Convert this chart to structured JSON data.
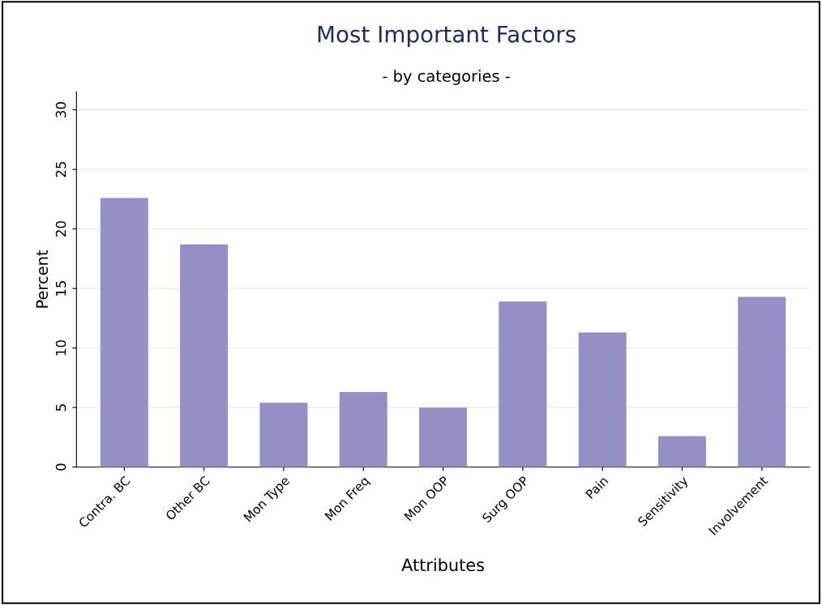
{
  "chart_data": {
    "type": "bar",
    "title": "Most Important Factors",
    "subtitle": "- by categories -",
    "xlabel": "Attributes",
    "ylabel": "Percent",
    "categories": [
      "Contra. BC",
      "Other BC",
      "Mon Type",
      "Mon Freq",
      "Mon OOP",
      "Surg OOP",
      "Pain",
      "Sensitivity",
      "Involvement"
    ],
    "values": [
      22.6,
      18.7,
      5.4,
      6.3,
      5.0,
      13.9,
      11.3,
      2.6,
      14.3
    ],
    "color": "#958fc5",
    "ylim": [
      0,
      31.5
    ],
    "yticks": [
      0,
      5,
      10,
      15,
      20,
      25,
      30
    ],
    "grid": "y",
    "legend": false
  }
}
